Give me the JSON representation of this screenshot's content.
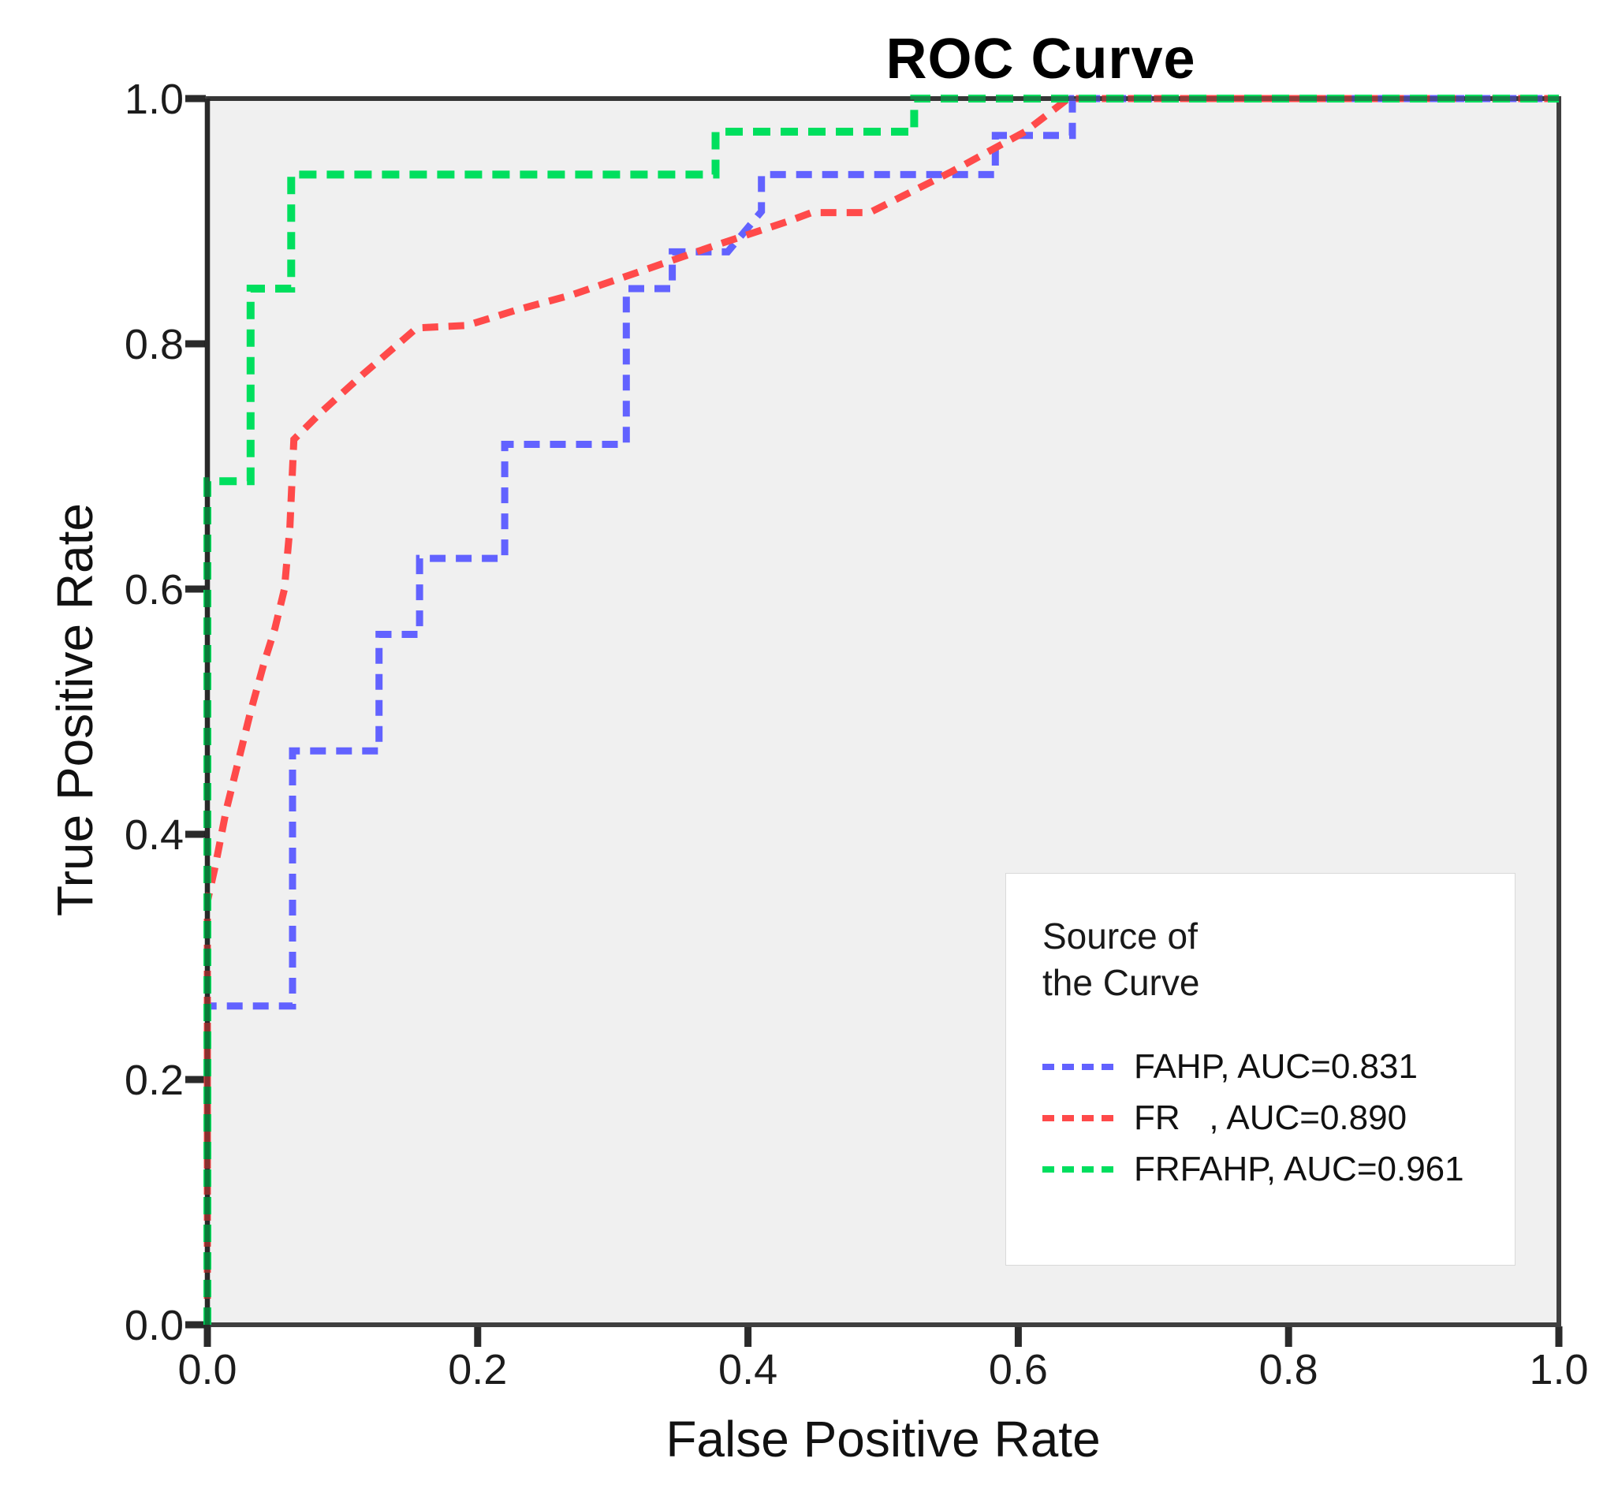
{
  "title": "ROC Curve",
  "axes": {
    "x": {
      "label": "False Positive Rate",
      "ticks": [
        0.0,
        0.2,
        0.4,
        0.6,
        0.8,
        1.0
      ],
      "tick_labels": [
        "0.0",
        "0.2",
        "0.4",
        "0.6",
        "0.8",
        "1.0"
      ],
      "range": [
        0,
        1
      ]
    },
    "y": {
      "label": "True Positive Rate",
      "ticks": [
        0.0,
        0.2,
        0.4,
        0.6,
        0.8,
        1.0
      ],
      "tick_labels": [
        "0.0",
        "0.2",
        "0.4",
        "0.6",
        "0.8",
        "1.0"
      ],
      "range": [
        0,
        1
      ]
    }
  },
  "legend": {
    "title": [
      "Source of",
      "the Curve"
    ],
    "entries": [
      {
        "name": "FAHP",
        "label": "FAHP, AUC=0.831",
        "color": "#6262ff"
      },
      {
        "name": "FR",
        "label": "FR   , AUC=0.890",
        "color": "#ff4a4a"
      },
      {
        "name": "FRFAHP",
        "label": "FRFAHP, AUC=0.961",
        "color": "#00df5e"
      }
    ]
  },
  "colors": {
    "plot_bg": "#f0f0f0",
    "frame": "#3f3f3f",
    "tick": "#2a2a2a",
    "page_bg": "#ffffff"
  },
  "chart_data": {
    "type": "line",
    "subtype": "roc-step-curves",
    "title": "ROC Curve",
    "xlabel": "False Positive Rate",
    "ylabel": "True Positive Rate",
    "xlim": [
      0,
      1
    ],
    "ylim": [
      0,
      1
    ],
    "grid": false,
    "legend_position": "lower-right",
    "legend_title": "Source of the Curve",
    "series": [
      {
        "name": "FAHP",
        "auc": 0.831,
        "color": "#6262ff",
        "style": "dashed",
        "points": [
          [
            0,
            0
          ],
          [
            0,
            0.26
          ],
          [
            0.063,
            0.26
          ],
          [
            0.063,
            0.468
          ],
          [
            0.127,
            0.468
          ],
          [
            0.127,
            0.563
          ],
          [
            0.157,
            0.563
          ],
          [
            0.157,
            0.625
          ],
          [
            0.22,
            0.625
          ],
          [
            0.22,
            0.718
          ],
          [
            0.31,
            0.718
          ],
          [
            0.31,
            0.845
          ],
          [
            0.344,
            0.845
          ],
          [
            0.344,
            0.875
          ],
          [
            0.385,
            0.875
          ],
          [
            0.41,
            0.908
          ],
          [
            0.41,
            0.938
          ],
          [
            0.583,
            0.938
          ],
          [
            0.583,
            0.97
          ],
          [
            0.64,
            0.97
          ],
          [
            0.64,
            1
          ],
          [
            1,
            1
          ]
        ]
      },
      {
        "name": "FR",
        "auc": 0.89,
        "color": "#ff4a4a",
        "style": "dashed",
        "points": [
          [
            0,
            0
          ],
          [
            0,
            0.345
          ],
          [
            0.006,
            0.375
          ],
          [
            0.014,
            0.42
          ],
          [
            0.023,
            0.46
          ],
          [
            0.032,
            0.5
          ],
          [
            0.042,
            0.54
          ],
          [
            0.05,
            0.568
          ],
          [
            0.057,
            0.6
          ],
          [
            0.061,
            0.65
          ],
          [
            0.064,
            0.722
          ],
          [
            0.085,
            0.745
          ],
          [
            0.115,
            0.775
          ],
          [
            0.155,
            0.813
          ],
          [
            0.192,
            0.815
          ],
          [
            0.23,
            0.828
          ],
          [
            0.27,
            0.84
          ],
          [
            0.315,
            0.857
          ],
          [
            0.375,
            0.88
          ],
          [
            0.43,
            0.9
          ],
          [
            0.447,
            0.907
          ],
          [
            0.49,
            0.907
          ],
          [
            0.55,
            0.94
          ],
          [
            0.605,
            0.973
          ],
          [
            0.637,
            1
          ],
          [
            1,
            1
          ]
        ]
      },
      {
        "name": "FRFAHP",
        "auc": 0.961,
        "color": "#00df5e",
        "style": "dashed",
        "points": [
          [
            0,
            0
          ],
          [
            0,
            0.688
          ],
          [
            0.032,
            0.688
          ],
          [
            0.032,
            0.845
          ],
          [
            0.062,
            0.845
          ],
          [
            0.062,
            0.938
          ],
          [
            0.376,
            0.938
          ],
          [
            0.376,
            0.973
          ],
          [
            0.523,
            0.973
          ],
          [
            0.523,
            1
          ],
          [
            1,
            1
          ]
        ]
      }
    ]
  }
}
